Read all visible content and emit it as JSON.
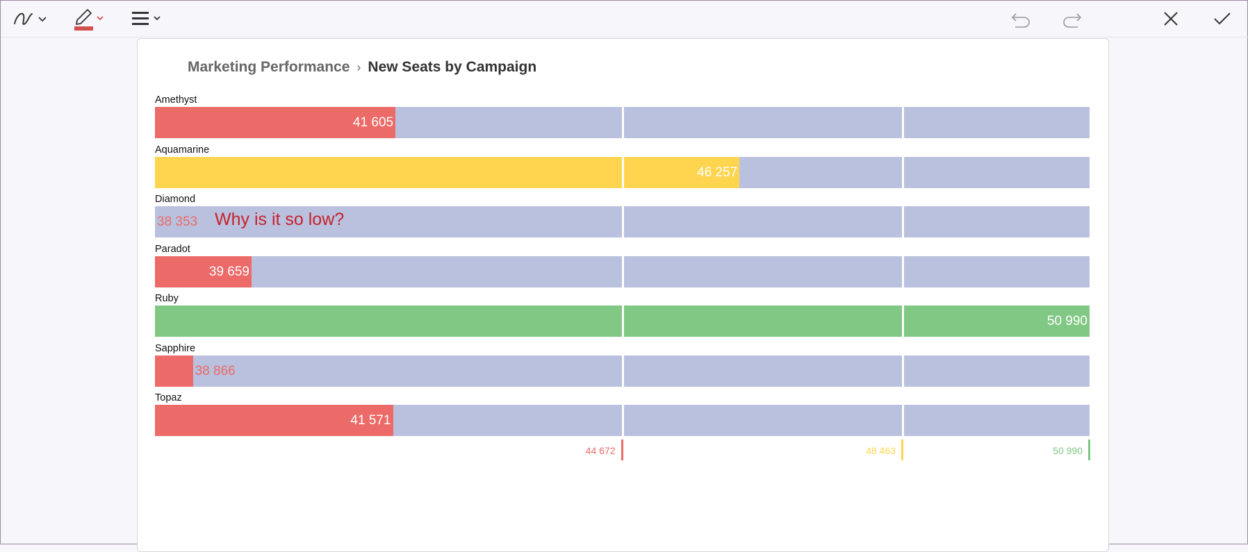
{
  "toolbar": {
    "ink_icon": "ink-stroke-icon",
    "pen_icon": "pen-icon",
    "pen_color": "#d2504c",
    "menu_icon": "hamburger-menu-icon",
    "undo_icon": "undo-icon",
    "redo_icon": "redo-icon",
    "close_icon": "close-icon",
    "confirm_icon": "checkmark-icon"
  },
  "breadcrumb": {
    "parent": "Marketing Performance",
    "separator": "›",
    "current": "New Seats by Campaign"
  },
  "annotation": {
    "text": "Why is it so low?"
  },
  "chart_data": {
    "type": "bar",
    "orientation": "horizontal",
    "categories": [
      "Amethyst",
      "Aquamarine",
      "Diamond",
      "Paradot",
      "Ruby",
      "Sapphire",
      "Topaz"
    ],
    "values": [
      41605,
      46257,
      38353,
      39659,
      50990,
      38866,
      41571
    ],
    "value_labels": [
      "41 605",
      "46 257",
      "38 353",
      "39 659",
      "50 990",
      "38 866",
      "41 571"
    ],
    "xlim": [
      38353,
      50990
    ],
    "thresholds": [
      {
        "value": 44672,
        "label": "44 672",
        "color": "#ea6a68"
      },
      {
        "value": 48463,
        "label": "48 463",
        "color": "#ffd54f"
      },
      {
        "value": 50990,
        "label": "50 990",
        "color": "#7ec87f"
      }
    ],
    "colors": {
      "low": "#ec6a68",
      "mid": "#ffd54f",
      "high": "#80c883",
      "track": "#b9c1de"
    },
    "grid": false
  }
}
